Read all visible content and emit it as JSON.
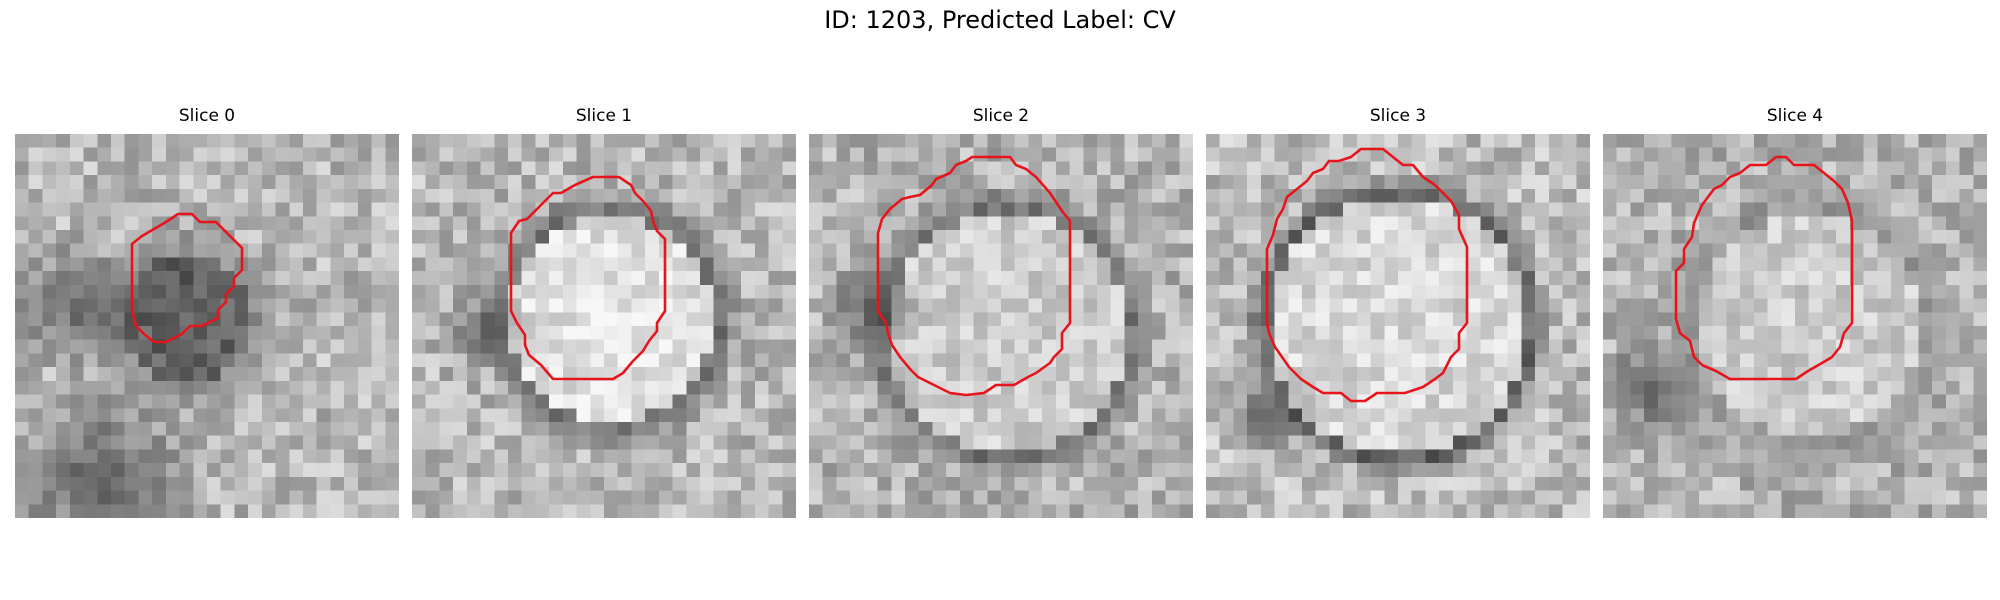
{
  "figure": {
    "title": "ID: 1203, Predicted Label: CV"
  },
  "panels": [
    {
      "title": "Slice 0"
    },
    {
      "title": "Slice 1"
    },
    {
      "title": "Slice 2"
    },
    {
      "title": "Slice 3"
    },
    {
      "title": "Slice 4"
    }
  ],
  "colors": {
    "contour": "#e8141c",
    "background": "#ffffff"
  }
}
